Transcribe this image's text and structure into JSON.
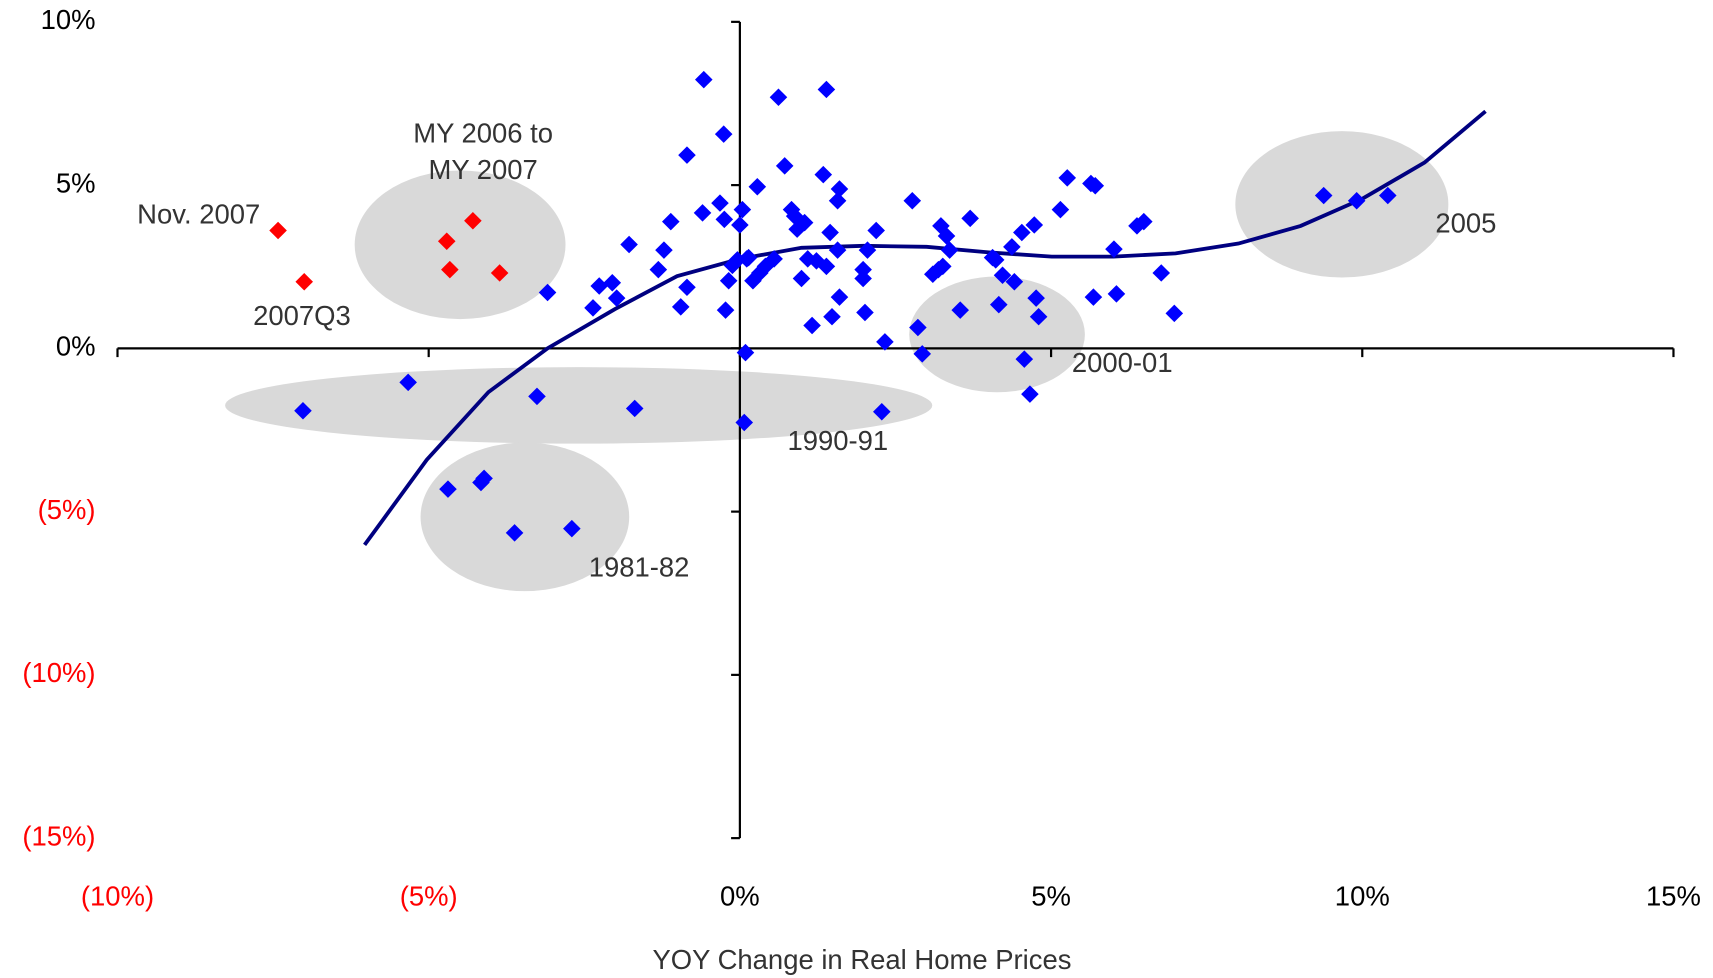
{
  "chart_data": {
    "type": "scatter",
    "xlabel": "YOY Change in Real Home Prices",
    "xlim": [
      -10,
      15
    ],
    "ylim": [
      -15,
      10
    ],
    "xticks": [
      {
        "value": -10,
        "label": "(10%)"
      },
      {
        "value": -5,
        "label": "(5%)"
      },
      {
        "value": 0,
        "label": "0%"
      },
      {
        "value": 5,
        "label": "5%"
      },
      {
        "value": 10,
        "label": "10%"
      },
      {
        "value": 15,
        "label": "15%"
      }
    ],
    "yticks": [
      {
        "value": 10,
        "label": "10%"
      },
      {
        "value": 5,
        "label": "5%"
      },
      {
        "value": 0,
        "label": "0%"
      },
      {
        "value": -5,
        "label": "(5%)"
      },
      {
        "value": -10,
        "label": "(10%)"
      },
      {
        "value": -15,
        "label": "(15%)"
      }
    ],
    "negative_tick_color": "#ff0000",
    "series": [
      {
        "color": "#0000ff",
        "x": [
          -7.02,
          -5.33,
          -4.69,
          -4.16,
          -4.11,
          -3.62,
          -3.26,
          -2.7,
          -3.09,
          -2.36,
          -2.26,
          -2.05,
          -1.98,
          -1.78,
          -1.69,
          -1.31,
          -1.22,
          -1.11,
          -0.95,
          -0.85,
          -0.85,
          -0.6,
          -0.58,
          -0.32,
          -0.26,
          -0.23,
          -0.18,
          -0.25,
          -0.12,
          -0.04,
          0,
          0.04,
          0.11,
          0.14,
          0.09,
          0.07,
          0.21,
          0.28,
          0.32,
          0.41,
          0.55,
          0.62,
          0.72,
          0.83,
          0.88,
          0.92,
          0.99,
          1.04,
          1.09,
          1.16,
          1.23,
          1.34,
          1.39,
          1.39,
          1.45,
          1.48,
          1.57,
          1.6,
          1.6,
          1.57,
          1.98,
          1.98,
          2.01,
          2.05,
          2.19,
          2.33,
          2.28,
          2.77,
          2.86,
          2.93,
          3.1,
          3.19,
          3.23,
          3.26,
          3.32,
          3.37,
          3.54,
          3.7,
          4.06,
          4.11,
          4.16,
          4.22,
          4.37,
          4.41,
          4.53,
          4.57,
          4.66,
          4.73,
          4.76,
          4.8,
          5.15,
          5.26,
          5.64,
          5.68,
          5.71,
          6.01,
          6.05,
          6.38,
          6.49,
          6.77,
          6.98,
          9.38,
          9.91,
          10.41
        ],
        "values": [
          -1.91,
          -1.04,
          -4.31,
          -4.11,
          -3.98,
          -5.65,
          -1.47,
          -5.52,
          1.71,
          1.24,
          1.91,
          2.01,
          1.54,
          3.18,
          -1.84,
          2.41,
          3.01,
          3.88,
          1.27,
          1.87,
          5.92,
          4.15,
          8.23,
          4.45,
          6.56,
          1.17,
          2.07,
          3.95,
          2.54,
          2.71,
          3.78,
          4.25,
          2.74,
          2.78,
          -0.13,
          -2.27,
          2.07,
          4.95,
          2.31,
          2.51,
          2.74,
          7.69,
          5.59,
          4.25,
          4.05,
          3.65,
          2.14,
          3.85,
          2.74,
          0.7,
          2.68,
          5.32,
          7.93,
          2.51,
          3.55,
          0.97,
          4.52,
          4.88,
          1.57,
          3.01,
          2.14,
          2.41,
          1.1,
          3.01,
          3.61,
          0.2,
          -1.94,
          4.52,
          0.64,
          -0.17,
          2.27,
          2.41,
          3.75,
          2.51,
          3.44,
          3.01,
          1.17,
          3.98,
          2.78,
          2.71,
          1.34,
          2.24,
          3.11,
          2.04,
          3.55,
          -0.33,
          -1.4,
          3.78,
          1.54,
          0.97,
          4.25,
          5.22,
          5.05,
          1.57,
          4.98,
          3.04,
          1.67,
          3.75,
          3.88,
          2.31,
          1.07,
          4.68,
          4.52,
          4.68
        ]
      },
      {
        "color": "#ff0000",
        "x": [
          -7.42,
          -7.0,
          -4.71,
          -4.29,
          -4.66,
          -3.86
        ],
        "values": [
          3.61,
          2.04,
          3.28,
          3.91,
          2.41,
          2.31
        ]
      }
    ],
    "fit_line": {
      "color": "#000080",
      "x": [
        -6.03,
        -5.03,
        -4.04,
        -3.09,
        -2.01,
        -1.01,
        0,
        0.99,
        1.99,
        3.0,
        4.0,
        5.01,
        6.0,
        7.0,
        8.01,
        9.01,
        10.0,
        11.0,
        11.98
      ],
      "values": [
        -6.02,
        -3.41,
        -1.34,
        0,
        1.2,
        2.21,
        2.74,
        3.08,
        3.14,
        3.11,
        2.94,
        2.81,
        2.81,
        2.91,
        3.21,
        3.75,
        4.58,
        5.69,
        7.26
      ]
    },
    "annotations": [
      "Nov. 2007",
      "2007Q3",
      "MY 2006 to",
      "MY 2007",
      "1990-91",
      "1981-82",
      "2000-01",
      "2005"
    ]
  }
}
